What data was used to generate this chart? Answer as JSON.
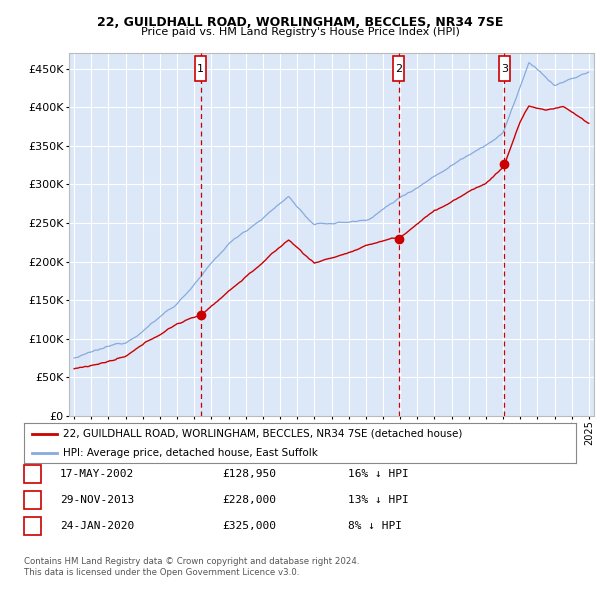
{
  "title1": "22, GUILDHALL ROAD, WORLINGHAM, BECCLES, NR34 7SE",
  "title2": "Price paid vs. HM Land Registry's House Price Index (HPI)",
  "ytick_values": [
    0,
    50000,
    100000,
    150000,
    200000,
    250000,
    300000,
    350000,
    400000,
    450000
  ],
  "xlim": [
    1994.7,
    2025.3
  ],
  "ylim": [
    0,
    470000
  ],
  "transactions": [
    {
      "num": 1,
      "date": "17-MAY-2002",
      "price": 128950,
      "price_str": "£128,950",
      "year": 2002.38,
      "pct": "16%",
      "dir": "↓"
    },
    {
      "num": 2,
      "date": "29-NOV-2013",
      "price": 228000,
      "price_str": "£228,000",
      "year": 2013.91,
      "pct": "13%",
      "dir": "↓"
    },
    {
      "num": 3,
      "date": "24-JAN-2020",
      "price": 325000,
      "price_str": "£325,000",
      "year": 2020.07,
      "pct": "8%",
      "dir": "↓"
    }
  ],
  "legend_label_red": "22, GUILDHALL ROAD, WORLINGHAM, BECCLES, NR34 7SE (detached house)",
  "legend_label_blue": "HPI: Average price, detached house, East Suffolk",
  "footer1": "Contains HM Land Registry data © Crown copyright and database right 2024.",
  "footer2": "This data is licensed under the Open Government Licence v3.0.",
  "bg_color": "#dce8f8",
  "grid_color": "#ffffff",
  "red_color": "#cc0000",
  "blue_color": "#88aadd"
}
